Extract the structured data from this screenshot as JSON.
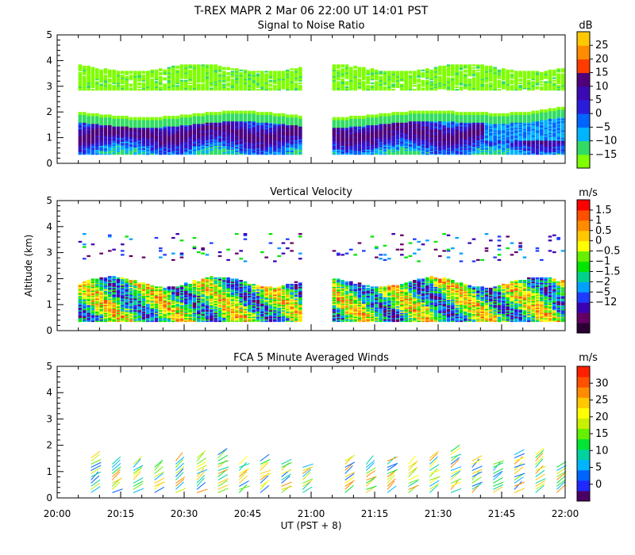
{
  "header": {
    "title": "T-REX   MAPR   2 Mar 06   22:00 UT   14:01   PST",
    "xlabel": "UT  (PST + 8)",
    "ylabel": "Altitude  (km)"
  },
  "colors": {
    "snr": [
      "#7fff00",
      "#32dc64",
      "#00b4ff",
      "#0064ff",
      "#2b1cdc",
      "#3c0ab4",
      "#500078",
      "#ff3c00",
      "#ff8c00",
      "#ffc800"
    ],
    "vv": [
      "#2a0032",
      "#640064",
      "#3c00b4",
      "#1e3cff",
      "#00a0ff",
      "#00d28c",
      "#00e600",
      "#64f000",
      "#ffff00",
      "#ffc800",
      "#ff8c00",
      "#ff5000",
      "#ff0000"
    ],
    "wind": [
      "#4b0064",
      "#1e28ff",
      "#0064ff",
      "#00b4ff",
      "#00d2a0",
      "#00e632",
      "#64f000",
      "#c8f000",
      "#ffff00",
      "#ffc800",
      "#ff8c00",
      "#ff5000",
      "#ff1e00"
    ]
  },
  "chart_data": [
    {
      "type": "heatmap",
      "title": "Signal to Noise Ratio",
      "units": "dB",
      "colorbar_ticks": [
        "25",
        "20",
        "15",
        "10",
        "5",
        "0",
        "−5",
        "−10",
        "−15"
      ],
      "x_range_ut": [
        "20:00",
        "22:00"
      ],
      "x_ticks": [
        "20:00",
        "20:15",
        "20:30",
        "20:45",
        "21:00",
        "21:15",
        "21:30",
        "21:45",
        "22:00"
      ],
      "y_ticks": [
        "0",
        "1",
        "2",
        "3",
        "4",
        "5"
      ],
      "ylim_km": [
        0,
        5
      ],
      "data_gap_ut": [
        "20:58",
        "21:05"
      ],
      "layers": [
        {
          "altitude_km": [
            0.35,
            1.8
          ],
          "value_db": "-15 to 15",
          "note": "strong returns, max near 1.2 km"
        },
        {
          "altitude_km": [
            2.8,
            3.8
          ],
          "value_db": "-15 to -10",
          "note": "weak upper layer"
        }
      ]
    },
    {
      "type": "heatmap",
      "title": "Vertical Velocity",
      "units": "m/s",
      "colorbar_ticks": [
        "1.5",
        "1",
        "0.5",
        "0",
        "−0.5",
        "−1",
        "−1.5",
        "−2",
        "−5",
        "−12"
      ],
      "x_ticks": [
        "20:00",
        "20:15",
        "20:30",
        "20:45",
        "21:00",
        "21:15",
        "21:30",
        "21:45",
        "22:00"
      ],
      "y_ticks": [
        "0",
        "1",
        "2",
        "3",
        "4",
        "5"
      ],
      "ylim_km": [
        0,
        5
      ],
      "data_gap_ut": [
        "20:58",
        "21:05"
      ],
      "layers": [
        {
          "altitude_km": [
            0.35,
            2.1
          ],
          "value_ms": "-12 to 1.5"
        },
        {
          "altitude_km": [
            2.6,
            3.7
          ],
          "value_ms": "-5 to 0.5",
          "note": "sparse patches"
        }
      ]
    },
    {
      "type": "barbs",
      "title": "FCA 5 Minute Averaged Winds",
      "units": "m/s",
      "colorbar_ticks": [
        "30",
        "25",
        "20",
        "15",
        "10",
        "5",
        "0"
      ],
      "x_ticks": [
        "20:00",
        "20:15",
        "20:30",
        "20:45",
        "21:00",
        "21:15",
        "21:30",
        "21:45",
        "22:00"
      ],
      "y_ticks": [
        "0",
        "1",
        "2",
        "3",
        "4",
        "5"
      ],
      "ylim_km": [
        0,
        5
      ],
      "profile_times_ut": [
        "20:08",
        "20:13",
        "20:18",
        "20:23",
        "20:28",
        "20:33",
        "20:38",
        "20:43",
        "20:48",
        "20:53",
        "20:58",
        "21:08",
        "21:13",
        "21:18",
        "21:23",
        "21:28",
        "21:33",
        "21:38",
        "21:43",
        "21:48",
        "21:53",
        "21:58"
      ],
      "altitude_range_km": [
        0.2,
        2.4
      ],
      "speed_range_ms": [
        0,
        30
      ]
    }
  ]
}
